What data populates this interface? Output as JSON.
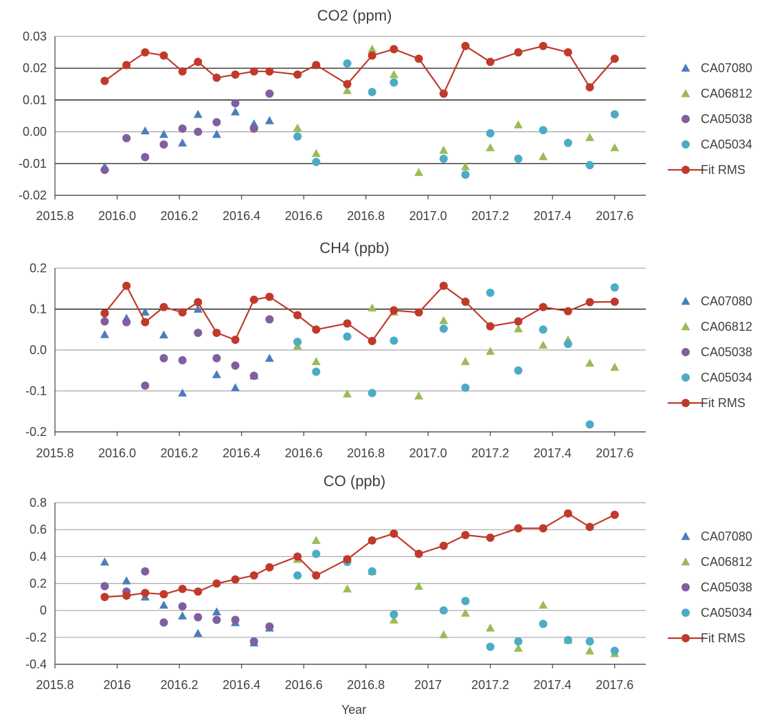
{
  "colors": {
    "CA07080": "#4a7ebb",
    "CA06812": "#9bbb59",
    "CA05038": "#7f5fa0",
    "CA05034": "#4bacc6",
    "Fit RMS": "#c0392b"
  },
  "chart_data": [
    {
      "type": "scatter",
      "title": "CO2 (ppm)",
      "xlabel": "",
      "ylabel": "",
      "xlim": [
        2015.8,
        2017.7
      ],
      "ylim": [
        -0.02,
        0.03
      ],
      "xticks": [
        2015.8,
        2016.0,
        2016.2,
        2016.4,
        2016.6,
        2016.8,
        2017.0,
        2017.2,
        2017.4,
        2017.6
      ],
      "xtick_labels": [
        "2015.8",
        "2016.0",
        "2016.2",
        "2016.4",
        "2016.6",
        "2016.8",
        "2017.0",
        "2017.2",
        "2017.4",
        "2017.6"
      ],
      "yticks": [
        -0.02,
        -0.01,
        0.0,
        0.01,
        0.02,
        0.03
      ],
      "ytick_labels": [
        "-0.02",
        "-0.01",
        "0.00",
        "0.01",
        "0.02",
        "0.03"
      ],
      "legend_position": "right",
      "series": [
        {
          "name": "CA07080",
          "marker": "triangle",
          "points": [
            [
              2015.96,
              -0.011
            ],
            [
              2016.09,
              0.0003
            ],
            [
              2016.15,
              -0.0008
            ],
            [
              2016.21,
              -0.0035
            ],
            [
              2016.26,
              0.0055
            ],
            [
              2016.32,
              -0.0008
            ],
            [
              2016.38,
              0.0063
            ],
            [
              2016.44,
              0.0025
            ],
            [
              2016.49,
              0.0035
            ]
          ]
        },
        {
          "name": "CA06812",
          "marker": "triangle",
          "points": [
            [
              2016.58,
              0.0012
            ],
            [
              2016.64,
              -0.0068
            ],
            [
              2016.74,
              0.013
            ],
            [
              2016.82,
              0.026
            ],
            [
              2016.89,
              0.018
            ],
            [
              2016.97,
              -0.0128
            ],
            [
              2017.05,
              -0.0058
            ],
            [
              2017.12,
              -0.011
            ],
            [
              2017.2,
              -0.005
            ],
            [
              2017.29,
              0.0022
            ],
            [
              2017.37,
              -0.0078
            ],
            [
              2017.52,
              -0.0018
            ],
            [
              2017.6,
              -0.005
            ]
          ]
        },
        {
          "name": "CA05038",
          "marker": "circle",
          "points": [
            [
              2015.96,
              -0.012
            ],
            [
              2016.03,
              -0.002
            ],
            [
              2016.09,
              -0.008
            ],
            [
              2016.15,
              -0.004
            ],
            [
              2016.21,
              0.001
            ],
            [
              2016.26,
              0.0
            ],
            [
              2016.32,
              0.003
            ],
            [
              2016.38,
              0.009
            ],
            [
              2016.44,
              0.001
            ],
            [
              2016.49,
              0.012
            ]
          ]
        },
        {
          "name": "CA05034",
          "marker": "circle",
          "points": [
            [
              2016.58,
              -0.0015
            ],
            [
              2016.64,
              -0.0095
            ],
            [
              2016.74,
              0.0215
            ],
            [
              2016.82,
              0.0125
            ],
            [
              2016.89,
              0.0155
            ],
            [
              2017.05,
              -0.0085
            ],
            [
              2017.12,
              -0.0135
            ],
            [
              2017.2,
              -0.0005
            ],
            [
              2017.29,
              -0.0085
            ],
            [
              2017.37,
              0.0005
            ],
            [
              2017.45,
              -0.0035
            ],
            [
              2017.52,
              -0.0105
            ],
            [
              2017.6,
              0.0055
            ]
          ]
        },
        {
          "name": "Fit RMS",
          "marker": "line",
          "points": [
            [
              2015.96,
              0.016
            ],
            [
              2016.03,
              0.021
            ],
            [
              2016.09,
              0.025
            ],
            [
              2016.15,
              0.024
            ],
            [
              2016.21,
              0.019
            ],
            [
              2016.26,
              0.022
            ],
            [
              2016.32,
              0.017
            ],
            [
              2016.38,
              0.018
            ],
            [
              2016.44,
              0.019
            ],
            [
              2016.49,
              0.019
            ],
            [
              2016.58,
              0.018
            ],
            [
              2016.64,
              0.021
            ],
            [
              2016.74,
              0.015
            ],
            [
              2016.82,
              0.024
            ],
            [
              2016.89,
              0.026
            ],
            [
              2016.97,
              0.023
            ],
            [
              2017.05,
              0.012
            ],
            [
              2017.12,
              0.027
            ],
            [
              2017.2,
              0.022
            ],
            [
              2017.29,
              0.025
            ],
            [
              2017.37,
              0.027
            ],
            [
              2017.45,
              0.025
            ],
            [
              2017.52,
              0.014
            ],
            [
              2017.6,
              0.023
            ]
          ]
        }
      ]
    },
    {
      "type": "scatter",
      "title": "CH4 (ppb)",
      "xlabel": "",
      "ylabel": "",
      "xlim": [
        2015.8,
        2017.7
      ],
      "ylim": [
        -0.2,
        0.2
      ],
      "xticks": [
        2015.8,
        2016.0,
        2016.2,
        2016.4,
        2016.6,
        2016.8,
        2017.0,
        2017.2,
        2017.4,
        2017.6
      ],
      "xtick_labels": [
        "2015.8",
        "2016.0",
        "2016.2",
        "2016.4",
        "2016.6",
        "2016.8",
        "2017.0",
        "2017.2",
        "2017.4",
        "2017.6"
      ],
      "yticks": [
        -0.2,
        -0.1,
        0.0,
        0.1,
        0.2
      ],
      "ytick_labels": [
        "-0.2",
        "-0.1",
        "0.0",
        "0.1",
        "0.2"
      ],
      "legend_position": "right",
      "series": [
        {
          "name": "CA07080",
          "marker": "triangle",
          "points": [
            [
              2015.96,
              0.038
            ],
            [
              2016.03,
              0.078
            ],
            [
              2016.09,
              0.093
            ],
            [
              2016.15,
              0.037
            ],
            [
              2016.21,
              -0.105
            ],
            [
              2016.26,
              0.1
            ],
            [
              2016.32,
              -0.06
            ],
            [
              2016.38,
              -0.092
            ],
            [
              2016.44,
              -0.063
            ],
            [
              2016.49,
              -0.02
            ]
          ]
        },
        {
          "name": "CA06812",
          "marker": "triangle",
          "points": [
            [
              2016.58,
              0.01
            ],
            [
              2016.64,
              -0.028
            ],
            [
              2016.74,
              -0.107
            ],
            [
              2016.82,
              0.103
            ],
            [
              2016.89,
              0.093
            ],
            [
              2016.97,
              -0.112
            ],
            [
              2017.05,
              0.072
            ],
            [
              2017.12,
              -0.028
            ],
            [
              2017.2,
              -0.003
            ],
            [
              2017.29,
              0.052
            ],
            [
              2017.37,
              0.012
            ],
            [
              2017.45,
              0.025
            ],
            [
              2017.52,
              -0.032
            ],
            [
              2017.6,
              -0.042
            ]
          ]
        },
        {
          "name": "CA05038",
          "marker": "circle",
          "points": [
            [
              2015.96,
              0.07
            ],
            [
              2016.03,
              0.068
            ],
            [
              2016.09,
              -0.087
            ],
            [
              2016.15,
              -0.02
            ],
            [
              2016.21,
              -0.025
            ],
            [
              2016.26,
              0.042
            ],
            [
              2016.32,
              -0.02
            ],
            [
              2016.38,
              -0.038
            ],
            [
              2016.44,
              -0.063
            ],
            [
              2016.49,
              0.075
            ]
          ]
        },
        {
          "name": "CA05034",
          "marker": "circle",
          "points": [
            [
              2016.58,
              0.02
            ],
            [
              2016.64,
              -0.053
            ],
            [
              2016.74,
              0.033
            ],
            [
              2016.82,
              -0.105
            ],
            [
              2016.89,
              0.023
            ],
            [
              2017.05,
              0.052
            ],
            [
              2017.12,
              -0.092
            ],
            [
              2017.2,
              0.14
            ],
            [
              2017.29,
              -0.05
            ],
            [
              2017.37,
              0.05
            ],
            [
              2017.45,
              0.015
            ],
            [
              2017.52,
              -0.182
            ],
            [
              2017.6,
              0.153
            ]
          ]
        },
        {
          "name": "Fit RMS",
          "marker": "line",
          "points": [
            [
              2015.96,
              0.09
            ],
            [
              2016.03,
              0.157
            ],
            [
              2016.09,
              0.068
            ],
            [
              2016.15,
              0.105
            ],
            [
              2016.21,
              0.092
            ],
            [
              2016.26,
              0.117
            ],
            [
              2016.32,
              0.042
            ],
            [
              2016.38,
              0.025
            ],
            [
              2016.44,
              0.123
            ],
            [
              2016.49,
              0.13
            ],
            [
              2016.58,
              0.085
            ],
            [
              2016.64,
              0.05
            ],
            [
              2016.74,
              0.065
            ],
            [
              2016.82,
              0.022
            ],
            [
              2016.89,
              0.097
            ],
            [
              2016.97,
              0.092
            ],
            [
              2017.05,
              0.157
            ],
            [
              2017.12,
              0.118
            ],
            [
              2017.2,
              0.058
            ],
            [
              2017.29,
              0.07
            ],
            [
              2017.37,
              0.105
            ],
            [
              2017.45,
              0.095
            ],
            [
              2017.52,
              0.117
            ],
            [
              2017.6,
              0.118
            ]
          ]
        }
      ]
    },
    {
      "type": "scatter",
      "title": "CO (ppb)",
      "xlabel": "Year",
      "ylabel": "",
      "xlim": [
        2015.8,
        2017.7
      ],
      "ylim": [
        -0.4,
        0.8
      ],
      "xticks": [
        2015.8,
        2016.0,
        2016.2,
        2016.4,
        2016.6,
        2016.8,
        2017.0,
        2017.2,
        2017.4,
        2017.6
      ],
      "xtick_labels": [
        "2015.8",
        "2016",
        "2016.2",
        "2016.4",
        "2016.6",
        "2016.8",
        "2017",
        "2017.2",
        "2017.4",
        "2017.6"
      ],
      "yticks": [
        -0.4,
        -0.2,
        0.0,
        0.2,
        0.4,
        0.6,
        0.8
      ],
      "ytick_labels": [
        "-0.4",
        "-0.2",
        "0",
        "0.2",
        "0.4",
        "0.6",
        "0.8"
      ],
      "legend_position": "right",
      "series": [
        {
          "name": "CA07080",
          "marker": "triangle",
          "points": [
            [
              2015.96,
              0.36
            ],
            [
              2016.03,
              0.22
            ],
            [
              2016.09,
              0.1
            ],
            [
              2016.15,
              0.04
            ],
            [
              2016.21,
              -0.04
            ],
            [
              2016.26,
              -0.17
            ],
            [
              2016.32,
              -0.01
            ],
            [
              2016.38,
              -0.09
            ],
            [
              2016.44,
              -0.24
            ],
            [
              2016.49,
              -0.13
            ]
          ]
        },
        {
          "name": "CA06812",
          "marker": "triangle",
          "points": [
            [
              2016.58,
              0.38
            ],
            [
              2016.64,
              0.52
            ],
            [
              2016.74,
              0.16
            ],
            [
              2016.82,
              0.29
            ],
            [
              2016.89,
              -0.07
            ],
            [
              2016.97,
              0.18
            ],
            [
              2017.05,
              -0.18
            ],
            [
              2017.12,
              -0.02
            ],
            [
              2017.2,
              -0.13
            ],
            [
              2017.29,
              -0.28
            ],
            [
              2017.37,
              0.04
            ],
            [
              2017.45,
              -0.22
            ],
            [
              2017.52,
              -0.3
            ],
            [
              2017.6,
              -0.32
            ]
          ]
        },
        {
          "name": "CA05038",
          "marker": "circle",
          "points": [
            [
              2015.96,
              0.18
            ],
            [
              2016.03,
              0.14
            ],
            [
              2016.09,
              0.29
            ],
            [
              2016.15,
              -0.09
            ],
            [
              2016.21,
              0.03
            ],
            [
              2016.26,
              -0.05
            ],
            [
              2016.32,
              -0.07
            ],
            [
              2016.38,
              -0.07
            ],
            [
              2016.44,
              -0.23
            ],
            [
              2016.49,
              -0.12
            ]
          ]
        },
        {
          "name": "CA05034",
          "marker": "circle",
          "points": [
            [
              2016.58,
              0.26
            ],
            [
              2016.64,
              0.42
            ],
            [
              2016.74,
              0.36
            ],
            [
              2016.82,
              0.29
            ],
            [
              2016.89,
              -0.03
            ],
            [
              2017.05,
              0.0
            ],
            [
              2017.12,
              0.07
            ],
            [
              2017.2,
              -0.27
            ],
            [
              2017.29,
              -0.23
            ],
            [
              2017.37,
              -0.1
            ],
            [
              2017.45,
              -0.22
            ],
            [
              2017.52,
              -0.23
            ],
            [
              2017.6,
              -0.3
            ]
          ]
        },
        {
          "name": "Fit RMS",
          "marker": "line",
          "points": [
            [
              2015.96,
              0.1
            ],
            [
              2016.03,
              0.11
            ],
            [
              2016.09,
              0.13
            ],
            [
              2016.15,
              0.12
            ],
            [
              2016.21,
              0.16
            ],
            [
              2016.26,
              0.14
            ],
            [
              2016.32,
              0.2
            ],
            [
              2016.38,
              0.23
            ],
            [
              2016.44,
              0.26
            ],
            [
              2016.49,
              0.32
            ],
            [
              2016.58,
              0.4
            ],
            [
              2016.64,
              0.26
            ],
            [
              2016.74,
              0.38
            ],
            [
              2016.82,
              0.52
            ],
            [
              2016.89,
              0.57
            ],
            [
              2016.97,
              0.42
            ],
            [
              2017.05,
              0.48
            ],
            [
              2017.12,
              0.56
            ],
            [
              2017.2,
              0.54
            ],
            [
              2017.29,
              0.61
            ],
            [
              2017.37,
              0.61
            ],
            [
              2017.45,
              0.72
            ],
            [
              2017.52,
              0.62
            ],
            [
              2017.6,
              0.71
            ]
          ]
        }
      ]
    }
  ]
}
